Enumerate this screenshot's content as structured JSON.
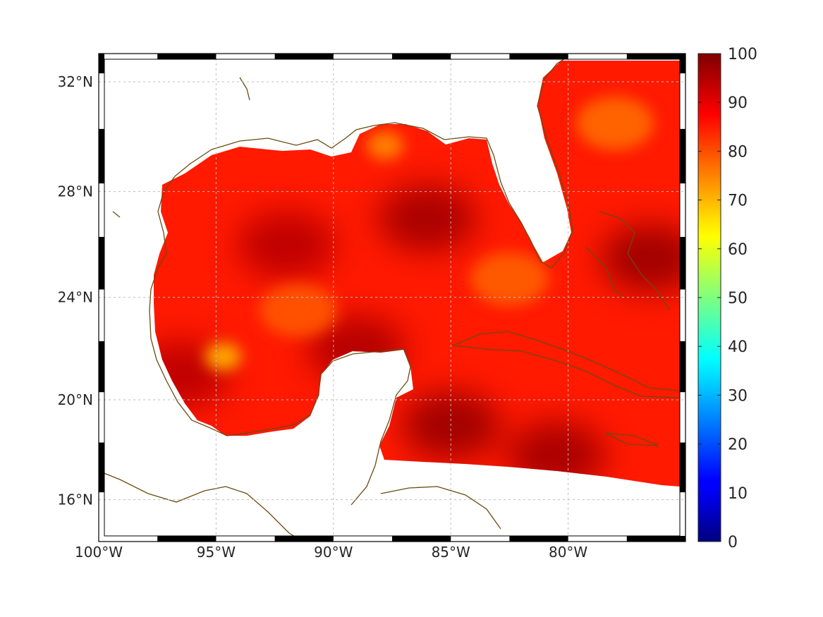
{
  "map": {
    "title": "",
    "projection": "mercator",
    "extent": {
      "lon": [
        -100,
        -75
      ],
      "lat": [
        14.3,
        33
      ]
    },
    "grid": true,
    "frame": "alternating black and white border",
    "coastline_color": "#6b4a12",
    "lon_ticks": [
      {
        "value": -100,
        "label": "100°W"
      },
      {
        "value": -95,
        "label": "95°W"
      },
      {
        "value": -90,
        "label": "90°W"
      },
      {
        "value": -85,
        "label": "85°W"
      },
      {
        "value": -80,
        "label": "80°W"
      }
    ],
    "lat_ticks": [
      {
        "value": 32,
        "label": "32°N"
      },
      {
        "value": 28,
        "label": "28°N"
      },
      {
        "value": 24,
        "label": "24°N"
      },
      {
        "value": 20,
        "label": "20°N"
      },
      {
        "value": 16,
        "label": "16°N"
      }
    ],
    "field": {
      "colormap": "jet",
      "general_level": 85,
      "high_regions": [
        {
          "name": "north-central gulf",
          "lon": -86,
          "lat": 27,
          "level": 96
        },
        {
          "name": "east of florida",
          "lon": -76.5,
          "lat": 25.5,
          "level": 97
        },
        {
          "name": "west caribbean",
          "lon": -85,
          "lat": 19,
          "level": 97
        },
        {
          "name": "south caribbean band",
          "lon": -80.5,
          "lat": 17.8,
          "level": 96
        },
        {
          "name": "bay of campeche west",
          "lon": -96.5,
          "lat": 21,
          "level": 94
        },
        {
          "name": "central gulf ridge",
          "lon": -92,
          "lat": 26,
          "level": 94
        },
        {
          "name": "yucatan channel north",
          "lon": -89,
          "lat": 22,
          "level": 95
        }
      ],
      "low_regions": [
        {
          "name": "west gulf minimum",
          "lon": -94.7,
          "lat": 21.7,
          "level": 70
        },
        {
          "name": "mississippi bight",
          "lon": -87.8,
          "lat": 29.7,
          "level": 74
        },
        {
          "name": "atlantic off georgia",
          "lon": -78,
          "lat": 30.5,
          "level": 77
        },
        {
          "name": "florida straits",
          "lon": -82.5,
          "lat": 24.7,
          "level": 78
        },
        {
          "name": "central gulf",
          "lon": -91.5,
          "lat": 23.5,
          "level": 79
        }
      ]
    }
  },
  "colorbar": {
    "min": 0,
    "max": 100,
    "colormap": "jet",
    "ticks": [
      "100",
      "90",
      "80",
      "70",
      "60",
      "50",
      "40",
      "30",
      "20",
      "10",
      "0"
    ]
  }
}
